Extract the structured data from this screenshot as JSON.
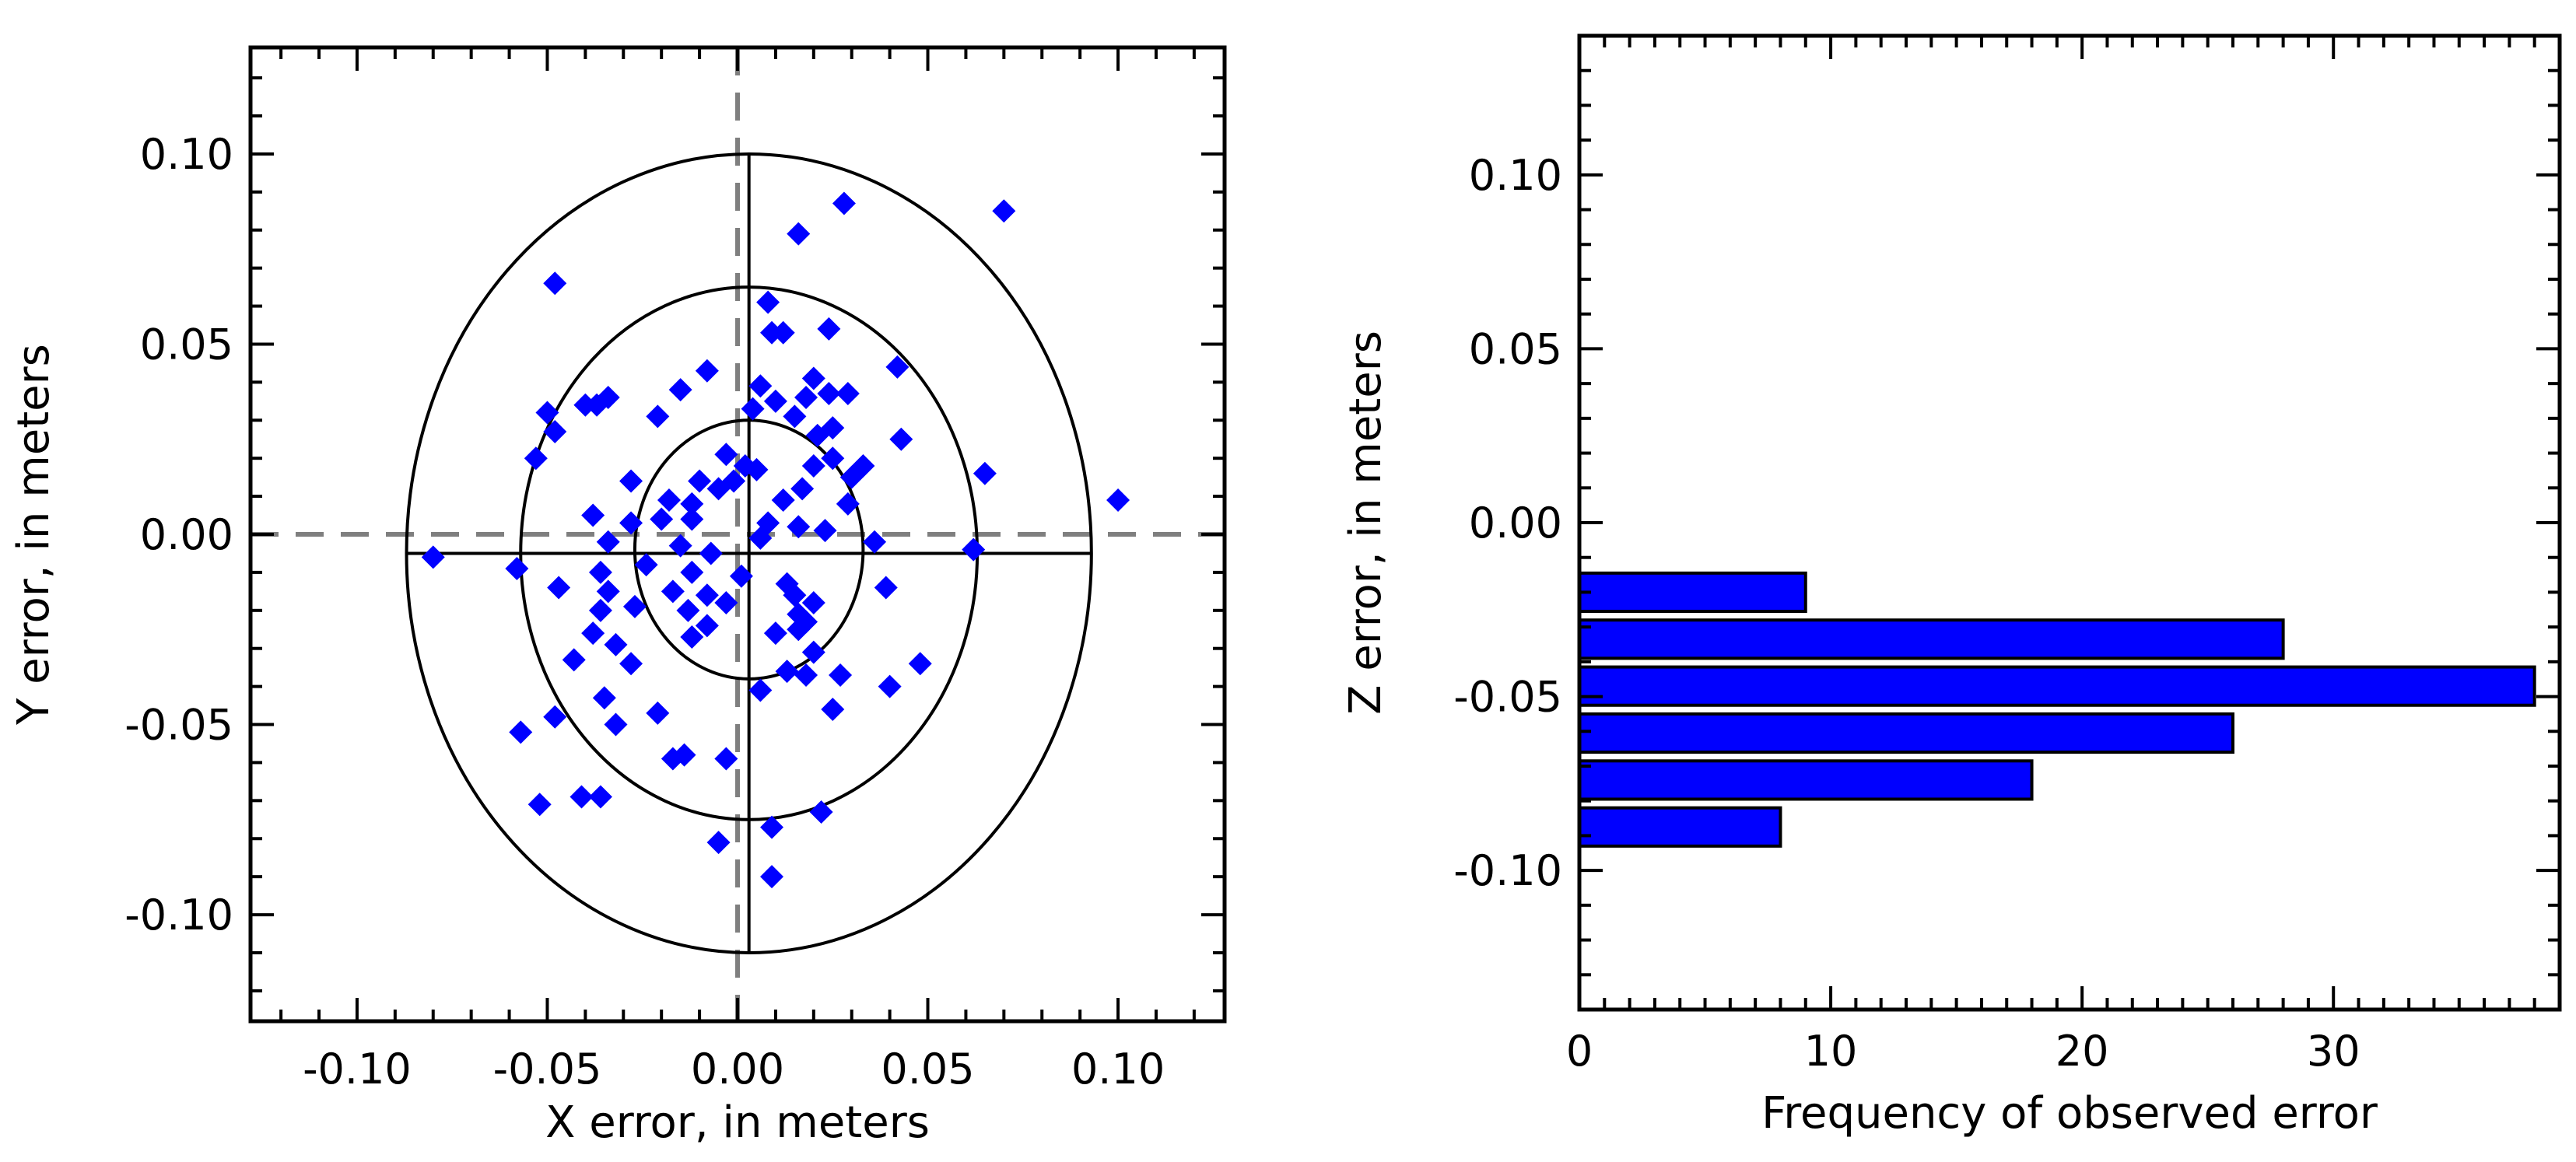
{
  "chart_data": [
    {
      "type": "scatter",
      "title": "",
      "xlabel": "X error, in meters",
      "ylabel": "Y error, in meters",
      "xlim": [
        -0.128,
        0.128
      ],
      "ylim": [
        -0.128,
        0.128
      ],
      "x_ticks": [
        -0.1,
        -0.05,
        0.0,
        0.05,
        0.1
      ],
      "x_tick_labels": [
        "-0.10",
        "-0.05",
        "0.00",
        "0.05",
        "0.10"
      ],
      "y_ticks": [
        0.1,
        0.05,
        0.0,
        -0.05,
        -0.1
      ],
      "y_tick_labels": [
        "0.10",
        "0.05",
        "0.00",
        "-0.05",
        "-0.10"
      ],
      "marker": "diamond",
      "marker_color": "#0000ff",
      "reference_lines": {
        "x": 0.0,
        "y": 0.0,
        "style": "dashed",
        "color": "#7f7f7f"
      },
      "ellipses": [
        {
          "center": [
            0.003,
            -0.004
          ],
          "rx": 0.03,
          "ry": 0.034
        },
        {
          "center": [
            0.003,
            -0.005
          ],
          "rx": 0.06,
          "ry": 0.07
        },
        {
          "center": [
            0.003,
            -0.005
          ],
          "rx": 0.09,
          "ry": 0.105
        }
      ],
      "crosshair_center": [
        0.003,
        -0.005
      ],
      "points": [
        [
          0.07,
          0.085
        ],
        [
          0.028,
          0.087
        ],
        [
          0.016,
          0.079
        ],
        [
          -0.048,
          0.066
        ],
        [
          0.008,
          0.061
        ],
        [
          0.009,
          0.053
        ],
        [
          0.012,
          0.053
        ],
        [
          0.024,
          0.054
        ],
        [
          0.042,
          0.044
        ],
        [
          -0.008,
          0.043
        ],
        [
          0.02,
          0.041
        ],
        [
          0.006,
          0.039
        ],
        [
          -0.015,
          0.038
        ],
        [
          0.024,
          0.037
        ],
        [
          0.029,
          0.037
        ],
        [
          0.018,
          0.036
        ],
        [
          -0.034,
          0.036
        ],
        [
          -0.037,
          0.034
        ],
        [
          -0.05,
          0.032
        ],
        [
          0.01,
          0.035
        ],
        [
          0.004,
          0.033
        ],
        [
          -0.021,
          0.031
        ],
        [
          -0.048,
          0.027
        ],
        [
          -0.04,
          0.034
        ],
        [
          0.015,
          0.031
        ],
        [
          0.025,
          0.028
        ],
        [
          0.043,
          0.025
        ],
        [
          -0.053,
          0.02
        ],
        [
          -0.003,
          0.021
        ],
        [
          0.002,
          0.018
        ],
        [
          0.021,
          0.026
        ],
        [
          0.025,
          0.02
        ],
        [
          0.02,
          0.018
        ],
        [
          0.065,
          0.016
        ],
        [
          -0.028,
          0.014
        ],
        [
          -0.01,
          0.014
        ],
        [
          -0.005,
          0.012
        ],
        [
          -0.001,
          0.014
        ],
        [
          0.005,
          0.017
        ],
        [
          0.017,
          0.012
        ],
        [
          0.03,
          0.015
        ],
        [
          0.033,
          0.018
        ],
        [
          -0.018,
          0.009
        ],
        [
          -0.012,
          0.008
        ],
        [
          0.012,
          0.009
        ],
        [
          0.029,
          0.008
        ],
        [
          0.1,
          0.009
        ],
        [
          -0.038,
          0.005
        ],
        [
          -0.028,
          0.003
        ],
        [
          -0.02,
          0.004
        ],
        [
          -0.012,
          0.004
        ],
        [
          0.008,
          0.003
        ],
        [
          0.016,
          0.002
        ],
        [
          -0.034,
          -0.002
        ],
        [
          -0.015,
          -0.003
        ],
        [
          0.006,
          -0.001
        ],
        [
          0.023,
          0.001
        ],
        [
          0.036,
          -0.002
        ],
        [
          0.062,
          -0.004
        ],
        [
          -0.08,
          -0.006
        ],
        [
          -0.058,
          -0.009
        ],
        [
          -0.036,
          -0.01
        ],
        [
          -0.024,
          -0.008
        ],
        [
          -0.012,
          -0.01
        ],
        [
          -0.007,
          -0.005
        ],
        [
          0.001,
          -0.011
        ],
        [
          0.013,
          -0.013
        ],
        [
          -0.017,
          -0.015
        ],
        [
          -0.047,
          -0.014
        ],
        [
          -0.034,
          -0.015
        ],
        [
          -0.008,
          -0.016
        ],
        [
          -0.003,
          -0.018
        ],
        [
          0.015,
          -0.016
        ],
        [
          0.02,
          -0.018
        ],
        [
          0.039,
          -0.014
        ],
        [
          -0.036,
          -0.02
        ],
        [
          -0.027,
          -0.019
        ],
        [
          -0.013,
          -0.02
        ],
        [
          0.016,
          -0.021
        ],
        [
          0.018,
          -0.023
        ],
        [
          -0.008,
          -0.024
        ],
        [
          0.01,
          -0.026
        ],
        [
          0.016,
          -0.025
        ],
        [
          -0.038,
          -0.026
        ],
        [
          -0.032,
          -0.029
        ],
        [
          -0.012,
          -0.027
        ],
        [
          -0.043,
          -0.033
        ],
        [
          -0.028,
          -0.034
        ],
        [
          0.02,
          -0.031
        ],
        [
          0.027,
          -0.037
        ],
        [
          0.04,
          -0.04
        ],
        [
          0.048,
          -0.034
        ],
        [
          -0.035,
          -0.043
        ],
        [
          0.013,
          -0.036
        ],
        [
          0.018,
          -0.037
        ],
        [
          -0.021,
          -0.047
        ],
        [
          -0.032,
          -0.05
        ],
        [
          -0.048,
          -0.048
        ],
        [
          0.006,
          -0.041
        ],
        [
          0.025,
          -0.046
        ],
        [
          -0.057,
          -0.052
        ],
        [
          -0.017,
          -0.059
        ],
        [
          -0.014,
          -0.058
        ],
        [
          -0.003,
          -0.059
        ],
        [
          -0.041,
          -0.069
        ],
        [
          -0.036,
          -0.069
        ],
        [
          -0.052,
          -0.071
        ],
        [
          0.022,
          -0.073
        ],
        [
          -0.005,
          -0.081
        ],
        [
          0.009,
          -0.077
        ],
        [
          0.009,
          -0.09
        ]
      ]
    },
    {
      "type": "bar",
      "orientation": "horizontal",
      "title": "",
      "xlabel": "Frequency of observed error",
      "ylabel": "Z error, in meters",
      "xlim": [
        0,
        39
      ],
      "ylim": [
        -0.14,
        0.14
      ],
      "x_ticks": [
        0,
        10,
        20,
        30
      ],
      "x_tick_labels": [
        "0",
        "10",
        "20",
        "30"
      ],
      "y_ticks": [
        0.1,
        0.05,
        0.0,
        -0.05,
        -0.1
      ],
      "y_tick_labels": [
        "0.10",
        "0.05",
        "0.00",
        "-0.05",
        "-0.10"
      ],
      "bar_color": "#0000ff",
      "bins": [
        {
          "y_low": -0.0255,
          "y_high": -0.0145,
          "count": 9
        },
        {
          "y_low": -0.039,
          "y_high": -0.028,
          "count": 28
        },
        {
          "y_low": -0.0525,
          "y_high": -0.0415,
          "count": 38
        },
        {
          "y_low": -0.066,
          "y_high": -0.055,
          "count": 26
        },
        {
          "y_low": -0.0795,
          "y_high": -0.0685,
          "count": 18
        },
        {
          "y_low": -0.093,
          "y_high": -0.082,
          "count": 8
        }
      ]
    }
  ]
}
